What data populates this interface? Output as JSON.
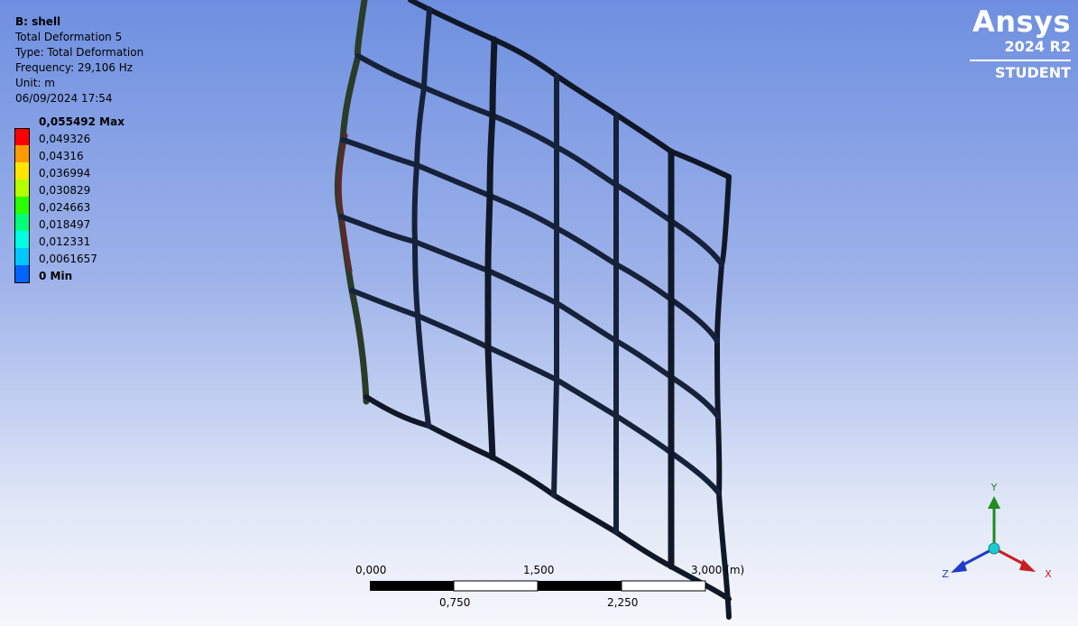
{
  "info": {
    "title": "B: shell",
    "result_name": "Total Deformation 5",
    "type": "Type: Total Deformation",
    "frequency": "Frequency: 29,106 Hz",
    "unit": "Unit: m",
    "timestamp": "06/09/2024 17:54"
  },
  "legend": {
    "items": [
      {
        "label": "0,055492 Max",
        "color": "#ff0000",
        "bold": true
      },
      {
        "label": "0,049326",
        "color": "#ff9a00",
        "bold": false
      },
      {
        "label": "0,04316",
        "color": "#ffe600",
        "bold": false
      },
      {
        "label": "0,036994",
        "color": "#b4ff00",
        "bold": false
      },
      {
        "label": "0,030829",
        "color": "#28ff00",
        "bold": false
      },
      {
        "label": "0,024663",
        "color": "#00ff78",
        "bold": false
      },
      {
        "label": "0,018497",
        "color": "#00ffe0",
        "bold": false
      },
      {
        "label": "0,012331",
        "color": "#00c8ff",
        "bold": false
      },
      {
        "label": "0,0061657",
        "color": "#0064ff",
        "bold": false
      },
      {
        "label": "0 Min",
        "color": "#0000ff",
        "bold": true
      }
    ]
  },
  "logo": {
    "brand": "Ansys",
    "version": "2024 R2",
    "edition": "STUDENT"
  },
  "scale_bar": {
    "top_labels": [
      "0,000",
      "1,500",
      "3,000 (m)"
    ],
    "bottom_labels": [
      "0,750",
      "2,250"
    ]
  },
  "triad": {
    "x_label": "X",
    "y_label": "Y",
    "z_label": "Z",
    "colors": {
      "x": "#c81e1e",
      "y": "#1e8c1e",
      "z": "#1e3cc8",
      "origin": "#1ec8d0"
    }
  }
}
